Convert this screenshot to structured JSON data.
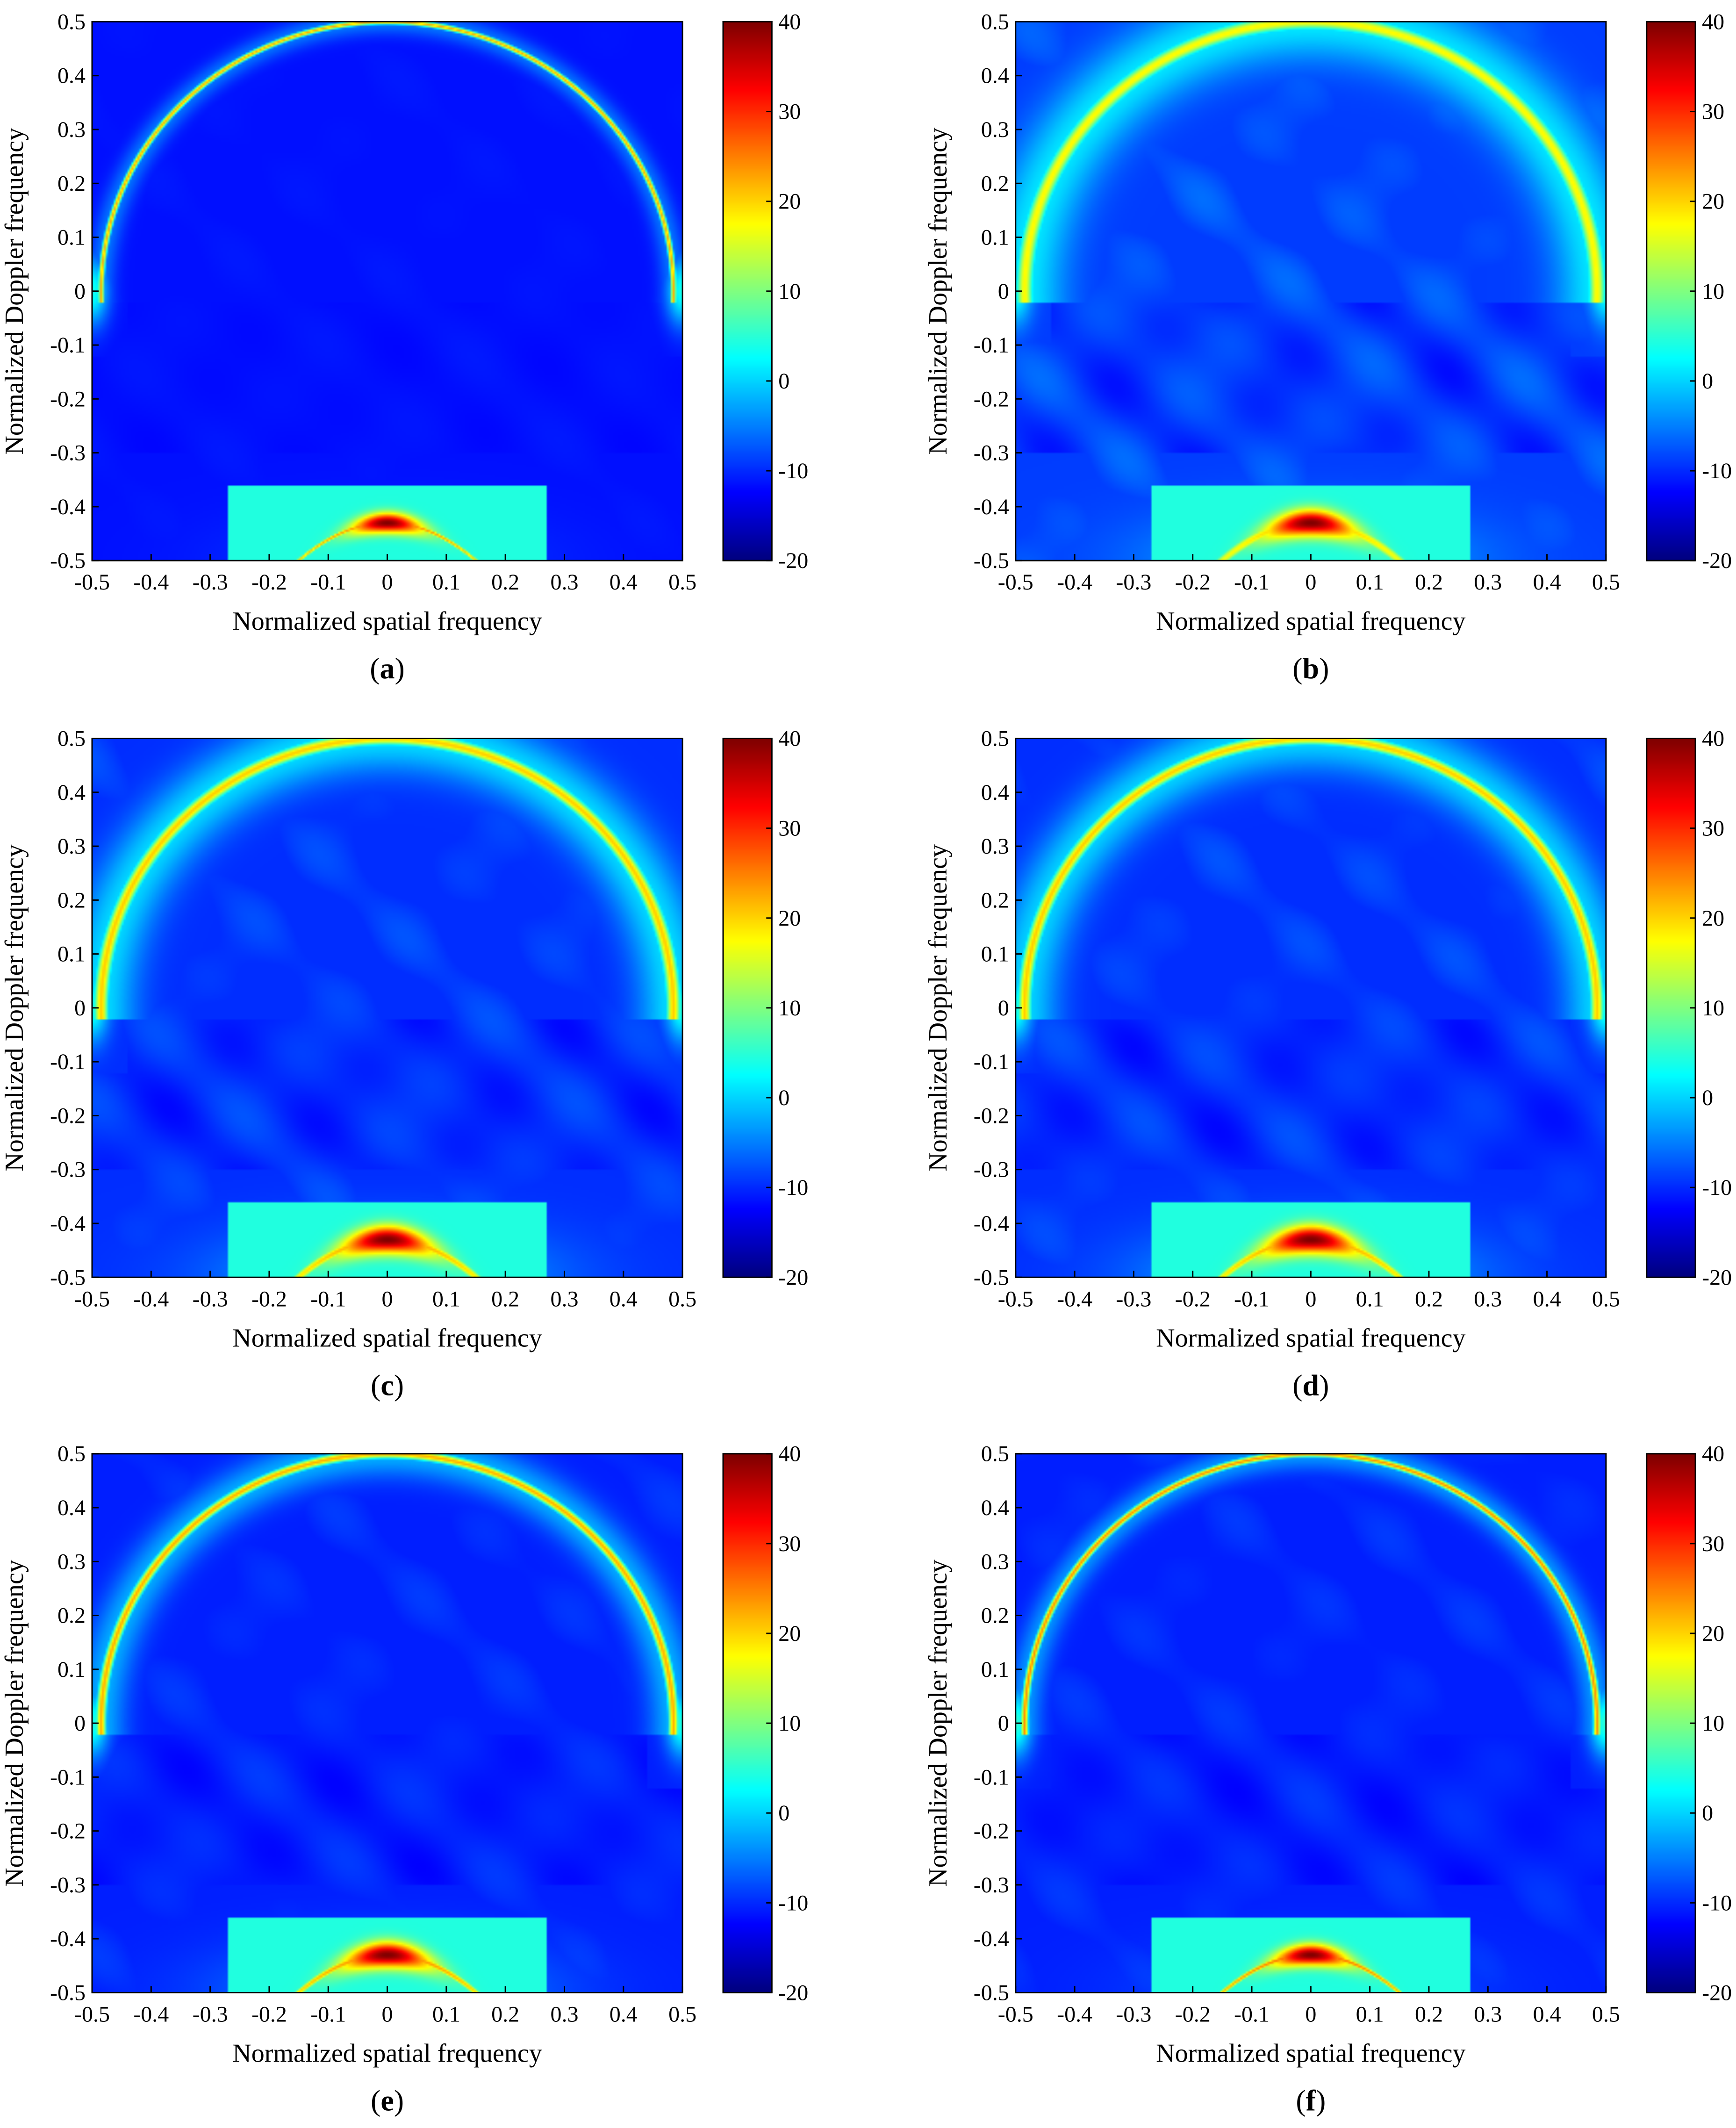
{
  "figure": {
    "panels": [
      {
        "label": "a",
        "sharpness": 1.0,
        "blob": 0.25,
        "texture": 0.2,
        "seed": 1
      },
      {
        "label": "b",
        "sharpness": 0.25,
        "blob": 0.75,
        "texture": 1.0,
        "seed": 2
      },
      {
        "label": "c",
        "sharpness": 0.4,
        "blob": 0.85,
        "texture": 0.8,
        "seed": 3
      },
      {
        "label": "d",
        "sharpness": 0.45,
        "blob": 0.9,
        "texture": 0.8,
        "seed": 4
      },
      {
        "label": "e",
        "sharpness": 0.7,
        "blob": 0.7,
        "texture": 0.6,
        "seed": 5
      },
      {
        "label": "f",
        "sharpness": 0.9,
        "blob": 0.35,
        "texture": 0.6,
        "seed": 6
      }
    ]
  },
  "chart_data": [
    {
      "type": "heatmap",
      "label": "(a)",
      "xlabel": "Normalized spatial frequency",
      "ylabel": "Normalized Doppler frequency",
      "xlim": [
        -0.5,
        0.5
      ],
      "ylim": [
        -0.5,
        0.5
      ],
      "xticks": [
        "-0.5",
        "-0.4",
        "-0.3",
        "-0.2",
        "-0.1",
        "0",
        "0.1",
        "0.2",
        "0.3",
        "0.4",
        "0.5"
      ],
      "yticks": [
        "0.5",
        "0.4",
        "0.3",
        "0.2",
        "0.1",
        "0",
        "-0.1",
        "-0.2",
        "-0.3",
        "-0.4",
        "-0.5"
      ],
      "colorbar": {
        "range": [
          -20,
          40
        ],
        "ticks": [
          "40",
          "30",
          "20",
          "10",
          "0",
          "-10",
          "-20"
        ],
        "colormap": "jet"
      },
      "features": {
        "clutter_ridge_peak_db": 20,
        "mainlobe": {
          "x": 0,
          "y": -0.43,
          "peak_db": 40
        },
        "background_db": -18
      }
    },
    {
      "type": "heatmap",
      "label": "(b)",
      "xlabel": "Normalized spatial frequency",
      "ylabel": "Normalized Doppler frequency",
      "xlim": [
        -0.5,
        0.5
      ],
      "ylim": [
        -0.5,
        0.5
      ],
      "xticks": [
        "-0.5",
        "-0.4",
        "-0.3",
        "-0.2",
        "-0.1",
        "0",
        "0.1",
        "0.2",
        "0.3",
        "0.4",
        "0.5"
      ],
      "yticks": [
        "0.5",
        "0.4",
        "0.3",
        "0.2",
        "0.1",
        "0",
        "-0.1",
        "-0.2",
        "-0.3",
        "-0.4",
        "-0.5"
      ],
      "colorbar": {
        "range": [
          -20,
          40
        ],
        "ticks": [
          "40",
          "30",
          "20",
          "10",
          "0",
          "-10",
          "-20"
        ],
        "colormap": "jet"
      },
      "features": {
        "clutter_ridge_peak_db": 15,
        "mainlobe": {
          "x": 0,
          "y": -0.43,
          "peak_db": 40
        },
        "background_db": -15
      }
    },
    {
      "type": "heatmap",
      "label": "(c)",
      "xlabel": "Normalized spatial frequency",
      "ylabel": "Normalized Doppler frequency",
      "xlim": [
        -0.5,
        0.5
      ],
      "ylim": [
        -0.5,
        0.5
      ],
      "xticks": [
        "-0.5",
        "-0.4",
        "-0.3",
        "-0.2",
        "-0.1",
        "0",
        "0.1",
        "0.2",
        "0.3",
        "0.4",
        "0.5"
      ],
      "yticks": [
        "0.5",
        "0.4",
        "0.3",
        "0.2",
        "0.1",
        "0",
        "-0.1",
        "-0.2",
        "-0.3",
        "-0.4",
        "-0.5"
      ],
      "colorbar": {
        "range": [
          -20,
          40
        ],
        "ticks": [
          "40",
          "30",
          "20",
          "10",
          "0",
          "-10",
          "-20"
        ],
        "colormap": "jet"
      },
      "features": {
        "clutter_ridge_peak_db": 18,
        "mainlobe": {
          "x": 0,
          "y": -0.43,
          "peak_db": 40
        },
        "background_db": -16
      }
    },
    {
      "type": "heatmap",
      "label": "(d)",
      "xlabel": "Normalized spatial frequency",
      "ylabel": "Normalized Doppler frequency",
      "xlim": [
        -0.5,
        0.5
      ],
      "ylim": [
        -0.5,
        0.5
      ],
      "xticks": [
        "-0.5",
        "-0.4",
        "-0.3",
        "-0.2",
        "-0.1",
        "0",
        "0.1",
        "0.2",
        "0.3",
        "0.4",
        "0.5"
      ],
      "yticks": [
        "0.5",
        "0.4",
        "0.3",
        "0.2",
        "0.1",
        "0",
        "-0.1",
        "-0.2",
        "-0.3",
        "-0.4",
        "-0.5"
      ],
      "colorbar": {
        "range": [
          -20,
          40
        ],
        "ticks": [
          "40",
          "30",
          "20",
          "10",
          "0",
          "-10",
          "-20"
        ],
        "colormap": "jet"
      },
      "features": {
        "clutter_ridge_peak_db": 18,
        "mainlobe": {
          "x": 0,
          "y": -0.43,
          "peak_db": 40
        },
        "background_db": -16
      }
    },
    {
      "type": "heatmap",
      "label": "(e)",
      "xlabel": "Normalized spatial frequency",
      "ylabel": "Normalized Doppler frequency",
      "xlim": [
        -0.5,
        0.5
      ],
      "ylim": [
        -0.5,
        0.5
      ],
      "xticks": [
        "-0.5",
        "-0.4",
        "-0.3",
        "-0.2",
        "-0.1",
        "0",
        "0.1",
        "0.2",
        "0.3",
        "0.4",
        "0.5"
      ],
      "yticks": [
        "0.5",
        "0.4",
        "0.3",
        "0.2",
        "0.1",
        "0",
        "-0.1",
        "-0.2",
        "-0.3",
        "-0.4",
        "-0.5"
      ],
      "colorbar": {
        "range": [
          -20,
          40
        ],
        "ticks": [
          "40",
          "30",
          "20",
          "10",
          "0",
          "-10",
          "-20"
        ],
        "colormap": "jet"
      },
      "features": {
        "clutter_ridge_peak_db": 20,
        "mainlobe": {
          "x": 0,
          "y": -0.43,
          "peak_db": 40
        },
        "background_db": -17
      }
    },
    {
      "type": "heatmap",
      "label": "(f)",
      "xlabel": "Normalized spatial frequency",
      "ylabel": "Normalized Doppler frequency",
      "xlim": [
        -0.5,
        0.5
      ],
      "ylim": [
        -0.5,
        0.5
      ],
      "xticks": [
        "-0.5",
        "-0.4",
        "-0.3",
        "-0.2",
        "-0.1",
        "0",
        "0.1",
        "0.2",
        "0.3",
        "0.4",
        "0.5"
      ],
      "yticks": [
        "0.5",
        "0.4",
        "0.3",
        "0.2",
        "0.1",
        "0",
        "-0.1",
        "-0.2",
        "-0.3",
        "-0.4",
        "-0.5"
      ],
      "colorbar": {
        "range": [
          -20,
          40
        ],
        "ticks": [
          "40",
          "30",
          "20",
          "10",
          "0",
          "-10",
          "-20"
        ],
        "colormap": "jet"
      },
      "features": {
        "clutter_ridge_peak_db": 22,
        "mainlobe": {
          "x": 0,
          "y": -0.43,
          "peak_db": 40
        },
        "background_db": -17
      }
    }
  ]
}
